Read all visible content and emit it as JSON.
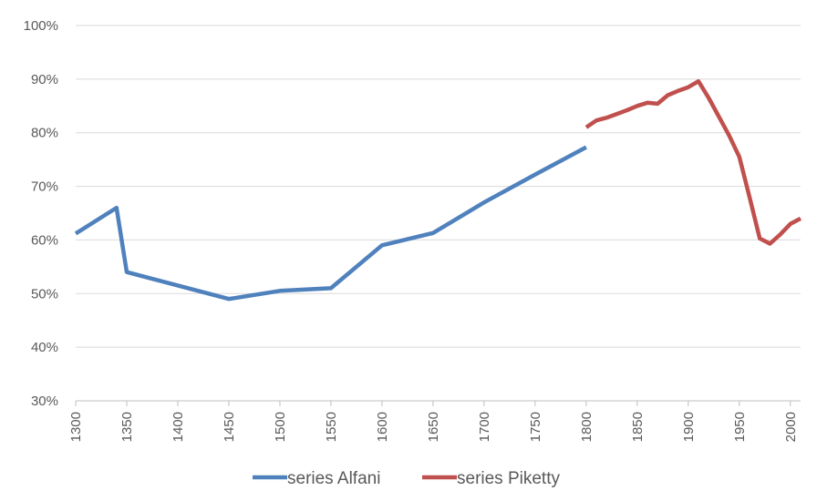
{
  "chart_data": {
    "type": "line",
    "title": "",
    "xlabel": "",
    "ylabel": "",
    "xlim": [
      1300,
      2010
    ],
    "ylim": [
      30,
      100
    ],
    "x_ticks": [
      "1300",
      "1350",
      "1400",
      "1450",
      "1500",
      "1550",
      "1600",
      "1650",
      "1700",
      "1750",
      "1800",
      "1850",
      "1900",
      "1950",
      "2000"
    ],
    "y_ticks": [
      "30%",
      "40%",
      "50%",
      "60%",
      "70%",
      "80%",
      "90%",
      "100%"
    ],
    "grid": "horizontal",
    "legend_position": "bottom",
    "series": [
      {
        "name": "series Alfani",
        "color": "#4f81bd",
        "x": [
          1300,
          1340,
          1350,
          1450,
          1500,
          1550,
          1600,
          1650,
          1700,
          1750,
          1800
        ],
        "y": [
          61.2,
          66.0,
          54.0,
          49.0,
          50.5,
          51.0,
          59.0,
          61.3,
          67.0,
          72.2,
          77.3
        ]
      },
      {
        "name": "series Piketty",
        "color": "#c0504d",
        "x": [
          1800,
          1810,
          1820,
          1830,
          1840,
          1850,
          1860,
          1870,
          1880,
          1890,
          1900,
          1910,
          1920,
          1930,
          1940,
          1950,
          1960,
          1970,
          1980,
          1990,
          2000,
          2010
        ],
        "y": [
          81.0,
          82.3,
          82.8,
          83.5,
          84.2,
          85.0,
          85.6,
          85.4,
          87.0,
          87.8,
          88.5,
          89.6,
          86.5,
          83.0,
          79.5,
          75.5,
          68.0,
          60.3,
          59.3,
          61.0,
          63.0,
          64.0
        ]
      }
    ]
  }
}
